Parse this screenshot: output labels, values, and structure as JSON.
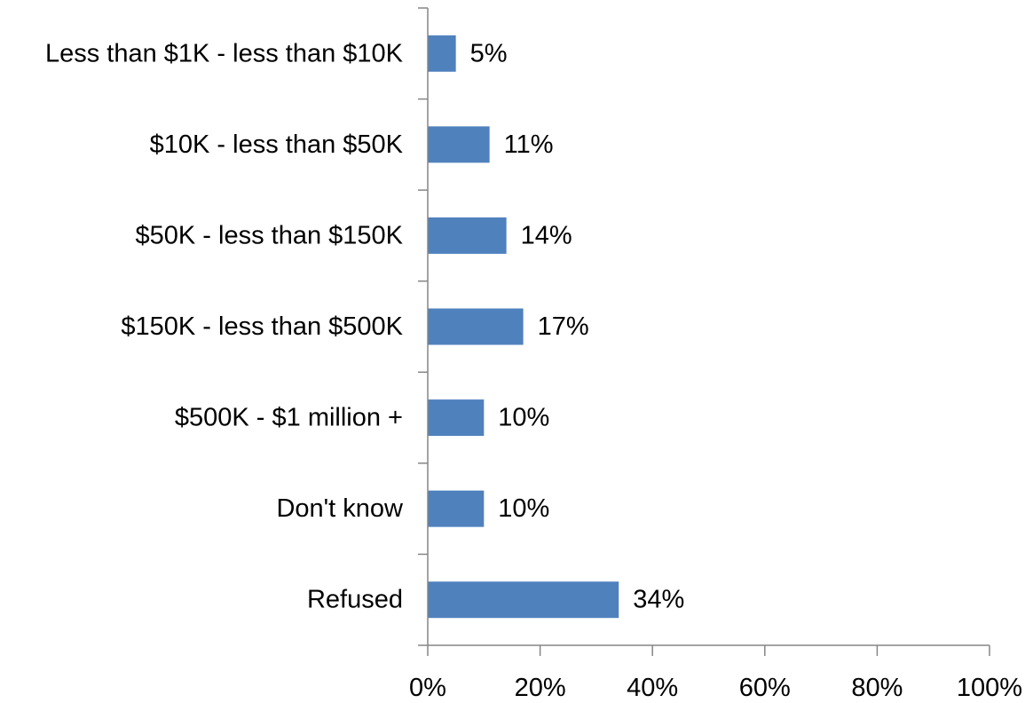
{
  "chart_data": {
    "type": "bar",
    "orientation": "horizontal",
    "categories": [
      "Less than $1K - less than $10K",
      "$10K - less than $50K",
      "$50K - less than $150K",
      "$150K - less than $500K",
      "$500K - $1 million +",
      "Don't know",
      "Refused"
    ],
    "values": [
      5,
      11,
      14,
      17,
      10,
      10,
      34
    ],
    "data_labels": [
      "5%",
      "11%",
      "14%",
      "17%",
      "10%",
      "10%",
      "34%"
    ],
    "x_ticks": [
      0,
      20,
      40,
      60,
      80,
      100
    ],
    "x_tick_labels": [
      "0%",
      "20%",
      "40%",
      "60%",
      "80%",
      "100%"
    ],
    "xlim": [
      0,
      100
    ],
    "title": "",
    "xlabel": "",
    "ylabel": "",
    "grid": false,
    "legend": "none",
    "bar_color": "#4F81BD",
    "axis_color": "#868686"
  }
}
